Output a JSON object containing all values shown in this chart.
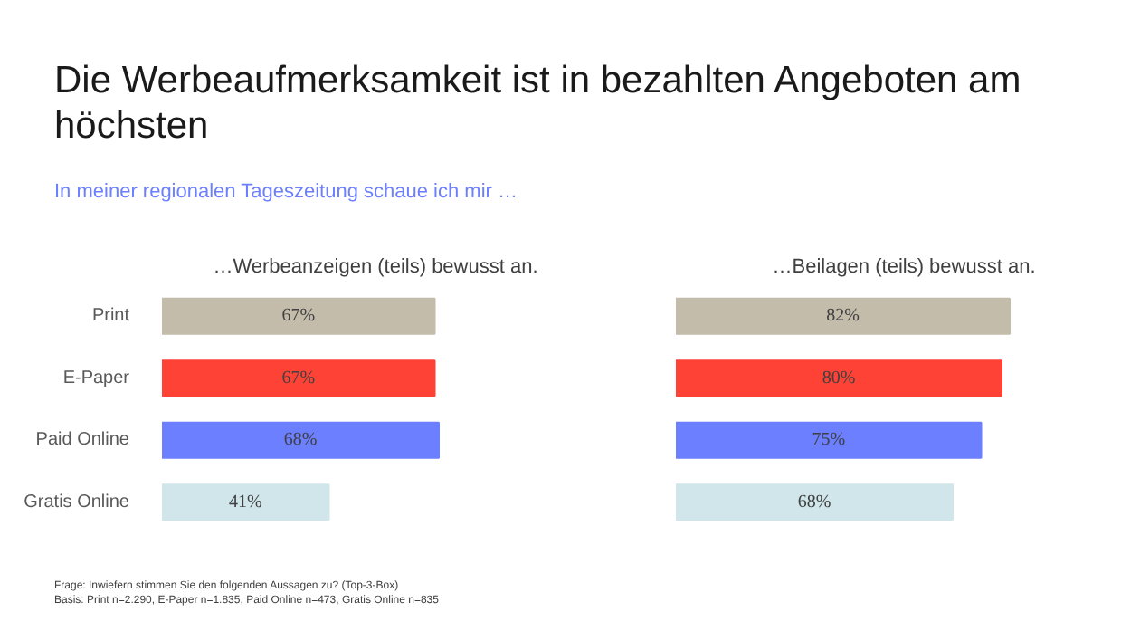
{
  "chart_data": [
    {
      "type": "bar",
      "orientation": "horizontal",
      "title": "Die Werbeaufmerksamkeit ist in bezahlten Angeboten am höchsten",
      "subtitle": "In meiner regionalen Tageszeitung schaue ich mir …",
      "xlabel": "…Werbeanzeigen (teils) bewusst an.",
      "categories": [
        "Print",
        "E-Paper",
        "Paid Online",
        "Gratis Online"
      ],
      "values": [
        67,
        67,
        68,
        41
      ],
      "value_labels": [
        "67%",
        "67%",
        "68%",
        "41%"
      ],
      "colors": [
        "#c4bcab",
        "#ff4236",
        "#6b7fff",
        "#d0e6ea"
      ],
      "annotations": [
        "Frage: Inwiefern stimmen Sie den folgenden Aussagen zu? (Top-3-Box)",
        "Basis: Print n=2.290, E-Paper n=1.835, Paid Online n=473, Gratis Online n=835"
      ]
    },
    {
      "type": "bar",
      "orientation": "horizontal",
      "xlabel": "…Beilagen (teils) bewusst an.",
      "categories": [
        null,
        null,
        null,
        null
      ],
      "values": [
        82,
        80,
        75,
        68
      ],
      "value_labels": [
        "82%",
        "80%",
        "75%",
        "68%"
      ],
      "colors": [
        "#c4bcab",
        "#ff4236",
        "#6b7fff",
        "#d0e6ea"
      ]
    }
  ]
}
